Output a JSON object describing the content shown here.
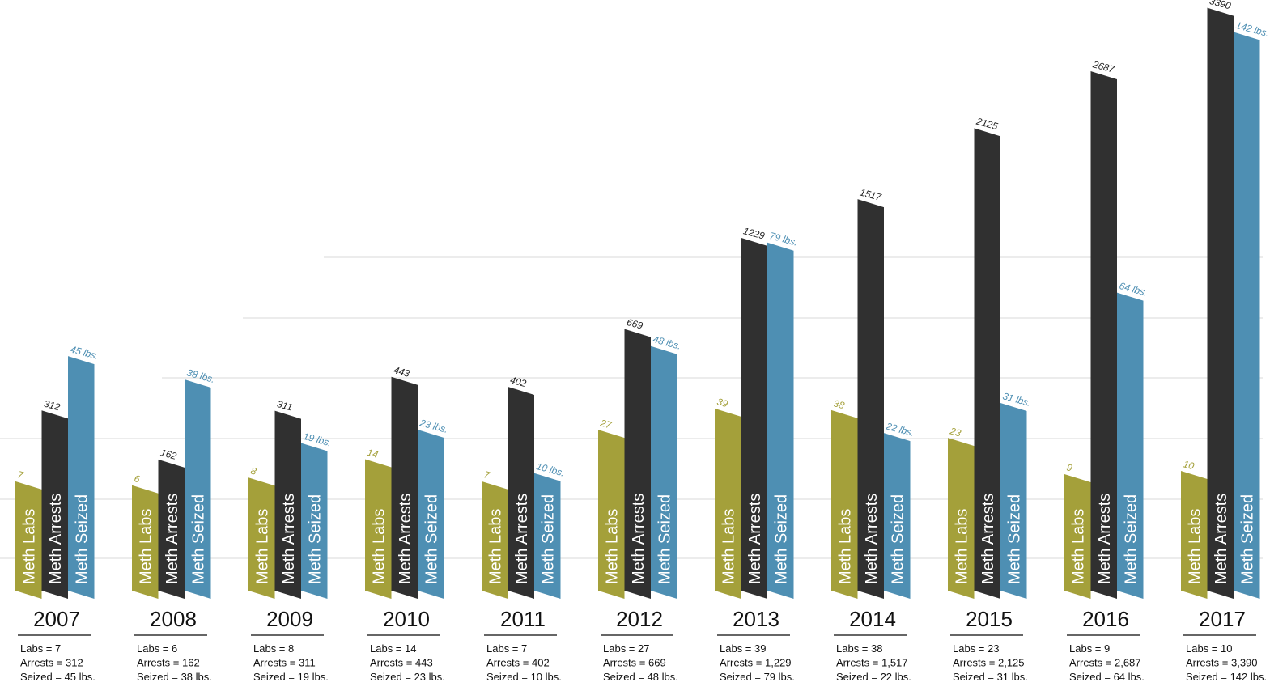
{
  "chart_data": {
    "type": "bar",
    "categories": [
      "2007",
      "2008",
      "2009",
      "2010",
      "2011",
      "2012",
      "2013",
      "2014",
      "2015",
      "2016",
      "2017"
    ],
    "series": [
      {
        "name": "Meth Labs",
        "color": "#a4a03a",
        "values": [
          7,
          6,
          8,
          14,
          7,
          27,
          39,
          38,
          23,
          9,
          10
        ]
      },
      {
        "name": "Meth Arrests",
        "color": "#303030",
        "values": [
          312,
          162,
          311,
          443,
          402,
          669,
          1229,
          1517,
          2125,
          2687,
          3390
        ]
      },
      {
        "name": "Meth Seized",
        "color": "#4e8fb3",
        "values": [
          45,
          38,
          19,
          23,
          10,
          48,
          79,
          22,
          31,
          64,
          142
        ],
        "value_labels": [
          "45 lbs.",
          "38 lbs.",
          "19 lbs.",
          "23 lbs.",
          "10 lbs.",
          "48 lbs.",
          "79 lbs.",
          "22 lbs.",
          "31 lbs.",
          "64 lbs.",
          "142 lbs."
        ]
      }
    ],
    "summaries": [
      [
        "Labs = 7",
        "Arrests = 312",
        "Seized = 45 lbs."
      ],
      [
        "Labs = 6",
        "Arrests = 162",
        "Seized = 38 lbs."
      ],
      [
        "Labs = 8",
        "Arrests = 311",
        "Seized = 19 lbs."
      ],
      [
        "Labs = 14",
        "Arrests = 443",
        "Seized = 23 lbs."
      ],
      [
        "Labs = 7",
        "Arrests = 402",
        "Seized = 10 lbs."
      ],
      [
        "Labs = 27",
        "Arrests = 669",
        "Seized = 48 lbs."
      ],
      [
        "Labs = 39",
        "Arrests = 1,229",
        "Seized = 79 lbs."
      ],
      [
        "Labs = 38",
        "Arrests = 1,517",
        "Seized = 22 lbs."
      ],
      [
        "Labs = 23",
        "Arrests = 2,125",
        "Seized = 31 lbs."
      ],
      [
        "Labs = 9",
        "Arrests = 2,687",
        "Seized = 64 lbs."
      ],
      [
        "Labs = 10",
        "Arrests = 3,390",
        "Seized = 142 lbs."
      ]
    ]
  }
}
